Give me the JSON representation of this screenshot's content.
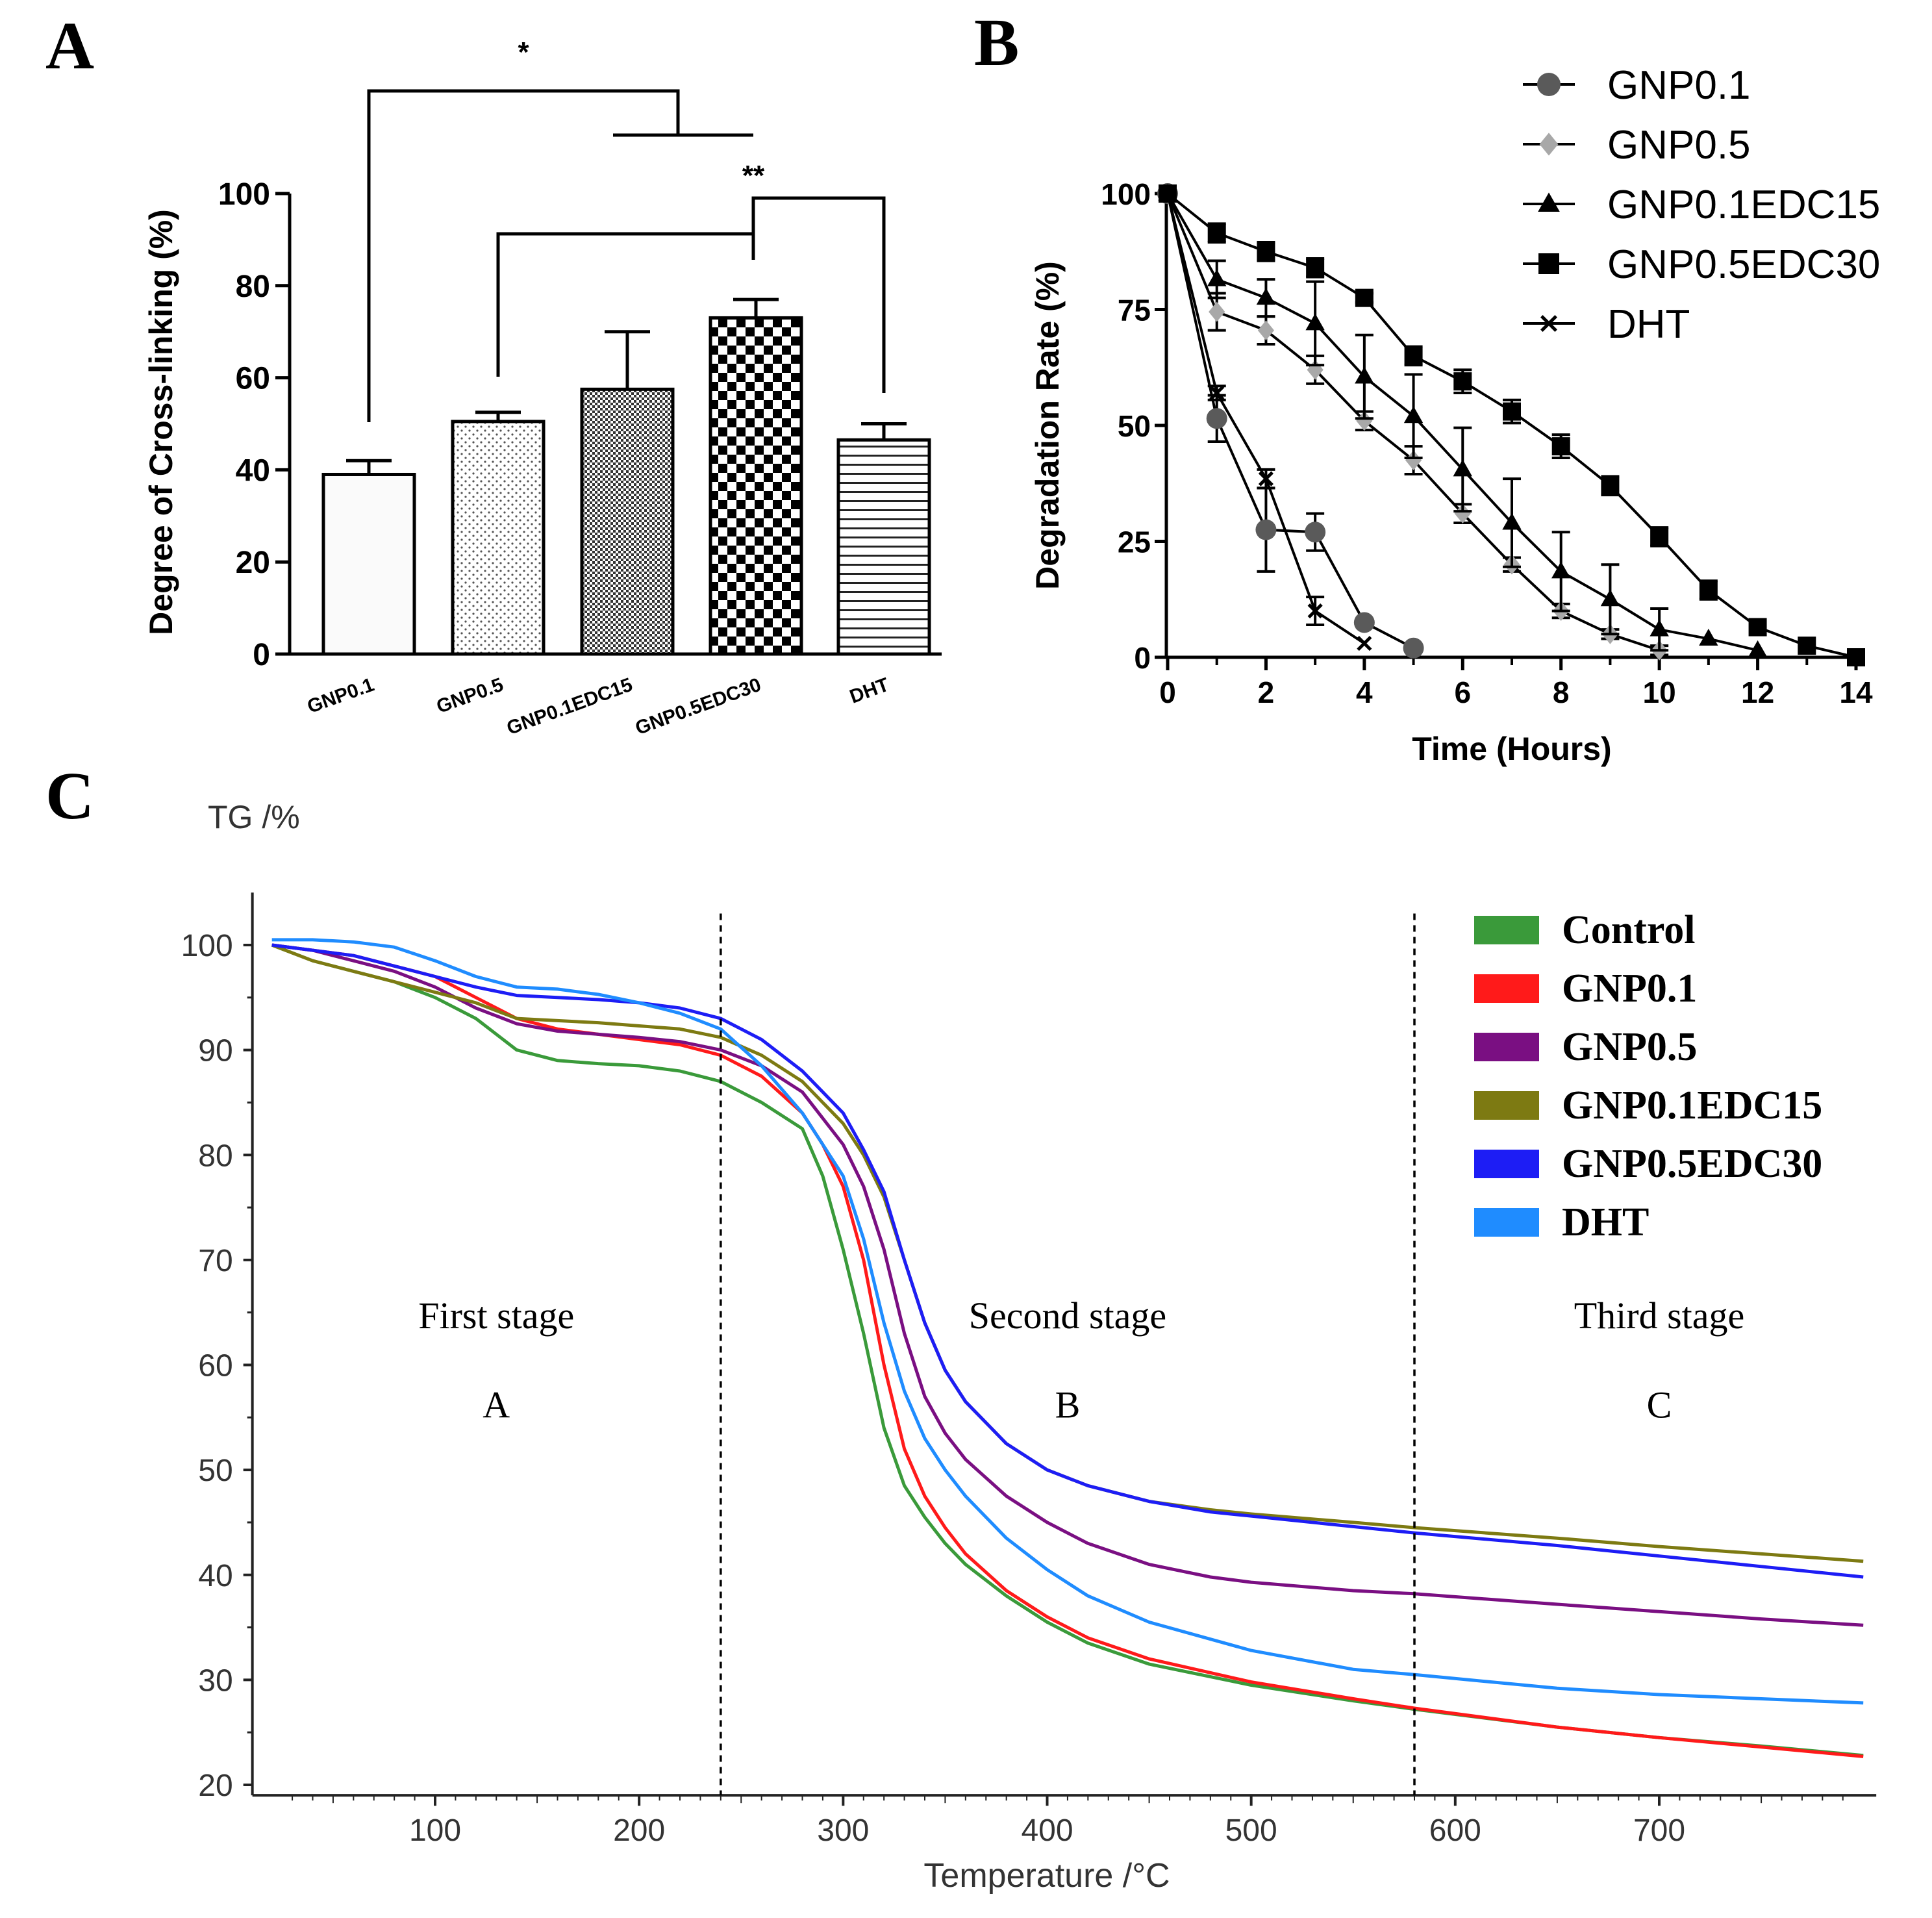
{
  "panel_labels": {
    "a": "A",
    "b": "B",
    "c": "C"
  },
  "colors": {
    "control": "#3a9a3a",
    "gnp01": "#ff1a1a",
    "gnp05": "#7a0f82",
    "gnp01edc15": "#7d7a12",
    "gnp05edc30": "#1d1df5",
    "dht": "#1f8cff",
    "b_gnp01": "#5a5a5a",
    "b_gnp05": "#a8a8a8"
  },
  "chart_data": [
    {
      "id": "A",
      "type": "bar",
      "ylabel": "Degree of Cross-linking (%)",
      "ylim": [
        0,
        100
      ],
      "yticks": [
        0,
        20,
        40,
        60,
        80,
        100
      ],
      "categories": [
        "GNP0.1",
        "GNP0.5",
        "GNP0.1EDC15",
        "GNP0.5EDC30",
        "DHT"
      ],
      "values": [
        39,
        50.5,
        57.5,
        73,
        46.5
      ],
      "errors": [
        3,
        2,
        12.5,
        4,
        3.5
      ],
      "fills": [
        "plain",
        "dots",
        "fine-check",
        "checker",
        "hlines"
      ],
      "significance": [
        {
          "label": "*",
          "between": "GNP0.1 vs GNP0.5 / GNP0.1EDC15 / GNP0.5EDC30 / DHT"
        },
        {
          "label": "**",
          "between": "GNP0.5EDC30 vs GNP0.5 and DHT"
        }
      ]
    },
    {
      "id": "B",
      "type": "line",
      "xlabel": "Time (Hours)",
      "ylabel": "Degradation Rate (%)",
      "xlim": [
        0,
        14
      ],
      "ylim": [
        0,
        100
      ],
      "xticks": [
        0,
        2,
        4,
        6,
        8,
        10,
        12,
        14
      ],
      "yticks": [
        0,
        25,
        50,
        75,
        100
      ],
      "legend_position": "top-right",
      "series": [
        {
          "name": "GNP0.1",
          "marker": "circle",
          "color_key": "b_gnp01",
          "x": [
            0,
            1,
            2,
            3,
            4,
            5
          ],
          "y": [
            100,
            51.5,
            27.5,
            27,
            7.5,
            2
          ],
          "err": [
            0,
            5,
            9,
            4,
            0,
            0
          ]
        },
        {
          "name": "GNP0.5",
          "marker": "diamond",
          "color_key": "b_gnp05",
          "x": [
            0,
            1,
            2,
            3,
            4,
            5,
            6,
            7,
            8,
            9,
            10
          ],
          "y": [
            100,
            74.5,
            70.5,
            62,
            51,
            42.5,
            31,
            20,
            10,
            5,
            1.5
          ],
          "err": [
            0,
            4,
            3,
            3,
            2,
            3,
            2,
            1.5,
            1.5,
            1,
            1
          ]
        },
        {
          "name": "GNP0.1EDC15",
          "marker": "triangle",
          "color_key": "black",
          "x": [
            0,
            1,
            2,
            3,
            4,
            5,
            6,
            7,
            8,
            9,
            10,
            11,
            12
          ],
          "y": [
            100,
            81.5,
            77.5,
            72,
            60.5,
            52,
            40.5,
            29,
            18.5,
            12.5,
            6,
            4,
            1.5
          ],
          "err": [
            0,
            4,
            4,
            9,
            9,
            9,
            9,
            9.5,
            8.5,
            7.5,
            4.5,
            0,
            0
          ]
        },
        {
          "name": "GNP0.5EDC30",
          "marker": "square",
          "color_key": "black",
          "x": [
            0,
            1,
            2,
            3,
            4,
            5,
            6,
            7,
            8,
            9,
            10,
            11,
            12,
            13,
            14
          ],
          "y": [
            100,
            91.5,
            87.5,
            84,
            77.5,
            65,
            59.5,
            53,
            45.5,
            37,
            26,
            14.5,
            6.5,
            2.5,
            0
          ],
          "err": [
            0,
            2,
            2,
            2,
            1,
            2,
            2.5,
            2.5,
            2.5,
            2,
            2,
            2,
            0,
            0,
            0
          ]
        },
        {
          "name": "DHT",
          "marker": "x",
          "color_key": "black",
          "x": [
            0,
            1,
            2,
            3,
            4
          ],
          "y": [
            100,
            57,
            38.5,
            10,
            3
          ],
          "err": [
            0,
            1.5,
            2,
            3,
            0
          ]
        }
      ]
    },
    {
      "id": "C",
      "type": "line",
      "title": "TG /%",
      "xlabel": "Temperature /°C",
      "xlim": [
        20,
        800
      ],
      "ylim": [
        19,
        105
      ],
      "xticks": [
        100,
        200,
        300,
        400,
        500,
        600,
        700
      ],
      "yticks": [
        20,
        30,
        40,
        50,
        60,
        70,
        80,
        90,
        100
      ],
      "stage_dividers_x": [
        240,
        580
      ],
      "legend_position": "top-right",
      "annotations": [
        {
          "text": "First stage",
          "x": 130,
          "y": 63.5
        },
        {
          "text": "A",
          "x": 130,
          "y": 55
        },
        {
          "text": "Second stage",
          "x": 410,
          "y": 63.5
        },
        {
          "text": "B",
          "x": 410,
          "y": 55
        },
        {
          "text": "Third stage",
          "x": 700,
          "y": 63.5
        },
        {
          "text": "C",
          "x": 700,
          "y": 55
        }
      ],
      "series": [
        {
          "name": "Control",
          "color_key": "control",
          "x": [
            20,
            40,
            60,
            80,
            100,
            120,
            140,
            160,
            180,
            200,
            220,
            240,
            260,
            280,
            290,
            300,
            310,
            320,
            330,
            340,
            350,
            360,
            380,
            400,
            420,
            450,
            500,
            550,
            580,
            650,
            700,
            750,
            800
          ],
          "y": [
            100,
            98.5,
            97.5,
            96.5,
            95,
            93,
            90,
            89,
            88.7,
            88.5,
            88,
            87,
            85,
            82.5,
            78,
            71,
            63,
            54,
            48.5,
            45.5,
            43,
            41,
            38,
            35.5,
            33.5,
            31.5,
            29.5,
            28,
            27.2,
            25.5,
            24.5,
            23.7,
            22.8
          ]
        },
        {
          "name": "GNP0.1",
          "color_key": "gnp01",
          "x": [
            20,
            40,
            60,
            80,
            100,
            120,
            140,
            160,
            180,
            200,
            220,
            240,
            260,
            280,
            290,
            300,
            310,
            320,
            330,
            340,
            350,
            360,
            380,
            400,
            420,
            450,
            500,
            550,
            580,
            650,
            700,
            750,
            800
          ],
          "y": [
            100,
            99.5,
            99,
            98,
            97,
            95,
            93,
            92,
            91.5,
            91,
            90.5,
            89.5,
            87.5,
            84,
            81,
            77,
            70,
            60,
            52,
            47.5,
            44.5,
            42,
            38.5,
            36,
            34,
            32,
            29.8,
            28.2,
            27.3,
            25.5,
            24.5,
            23.6,
            22.7
          ]
        },
        {
          "name": "GNP0.5",
          "color_key": "gnp05",
          "x": [
            20,
            40,
            60,
            80,
            100,
            120,
            140,
            160,
            180,
            200,
            220,
            240,
            260,
            280,
            300,
            310,
            320,
            330,
            340,
            350,
            360,
            380,
            400,
            420,
            450,
            480,
            500,
            550,
            580,
            650,
            700,
            750,
            800
          ],
          "y": [
            100,
            99.5,
            98.5,
            97.5,
            96,
            94,
            92.5,
            91.8,
            91.5,
            91.2,
            90.8,
            90,
            88.5,
            86,
            81,
            77,
            71,
            63,
            57,
            53.5,
            51,
            47.5,
            45,
            43,
            41,
            39.8,
            39.3,
            38.5,
            38.2,
            37.2,
            36.5,
            35.8,
            35.2
          ]
        },
        {
          "name": "GNP0.1EDC15",
          "color_key": "gnp01edc15",
          "x": [
            20,
            40,
            60,
            80,
            100,
            120,
            140,
            160,
            180,
            200,
            220,
            240,
            260,
            280,
            300,
            310,
            320,
            330,
            340,
            350,
            360,
            380,
            400,
            420,
            450,
            480,
            500,
            550,
            580,
            650,
            700,
            750,
            800
          ],
          "y": [
            100,
            98.5,
            97.5,
            96.5,
            95.5,
            94.5,
            93,
            92.8,
            92.6,
            92.3,
            92,
            91.2,
            89.5,
            87,
            83,
            80,
            76,
            70,
            64,
            59.5,
            56.5,
            52.5,
            50,
            48.5,
            47,
            46.2,
            45.8,
            45,
            44.5,
            43.5,
            42.7,
            42,
            41.3
          ]
        },
        {
          "name": "GNP0.5EDC30",
          "color_key": "gnp05edc30",
          "x": [
            20,
            40,
            60,
            80,
            100,
            120,
            140,
            160,
            180,
            200,
            220,
            240,
            260,
            280,
            300,
            310,
            320,
            330,
            340,
            350,
            360,
            380,
            400,
            420,
            450,
            480,
            500,
            550,
            580,
            650,
            700,
            750,
            800
          ],
          "y": [
            100,
            99.5,
            99,
            98,
            97,
            96,
            95.2,
            95,
            94.8,
            94.5,
            94,
            93,
            91,
            88,
            84,
            80.5,
            76.5,
            70,
            64,
            59.5,
            56.5,
            52.5,
            50,
            48.5,
            47,
            46,
            45.6,
            44.6,
            44,
            42.8,
            41.8,
            40.8,
            39.8
          ]
        },
        {
          "name": "DHT",
          "color_key": "dht",
          "x": [
            20,
            40,
            60,
            80,
            100,
            120,
            140,
            160,
            180,
            200,
            220,
            240,
            260,
            280,
            300,
            310,
            320,
            330,
            340,
            350,
            360,
            380,
            400,
            420,
            450,
            500,
            550,
            580,
            650,
            700,
            750,
            800
          ],
          "y": [
            100.5,
            100.5,
            100.3,
            99.8,
            98.5,
            97,
            96,
            95.8,
            95.3,
            94.5,
            93.5,
            92,
            88.5,
            84,
            78,
            72,
            64,
            57.5,
            53,
            50,
            47.5,
            43.5,
            40.5,
            38,
            35.5,
            32.8,
            31,
            30.5,
            29.2,
            28.6,
            28.2,
            27.8
          ]
        }
      ]
    }
  ]
}
